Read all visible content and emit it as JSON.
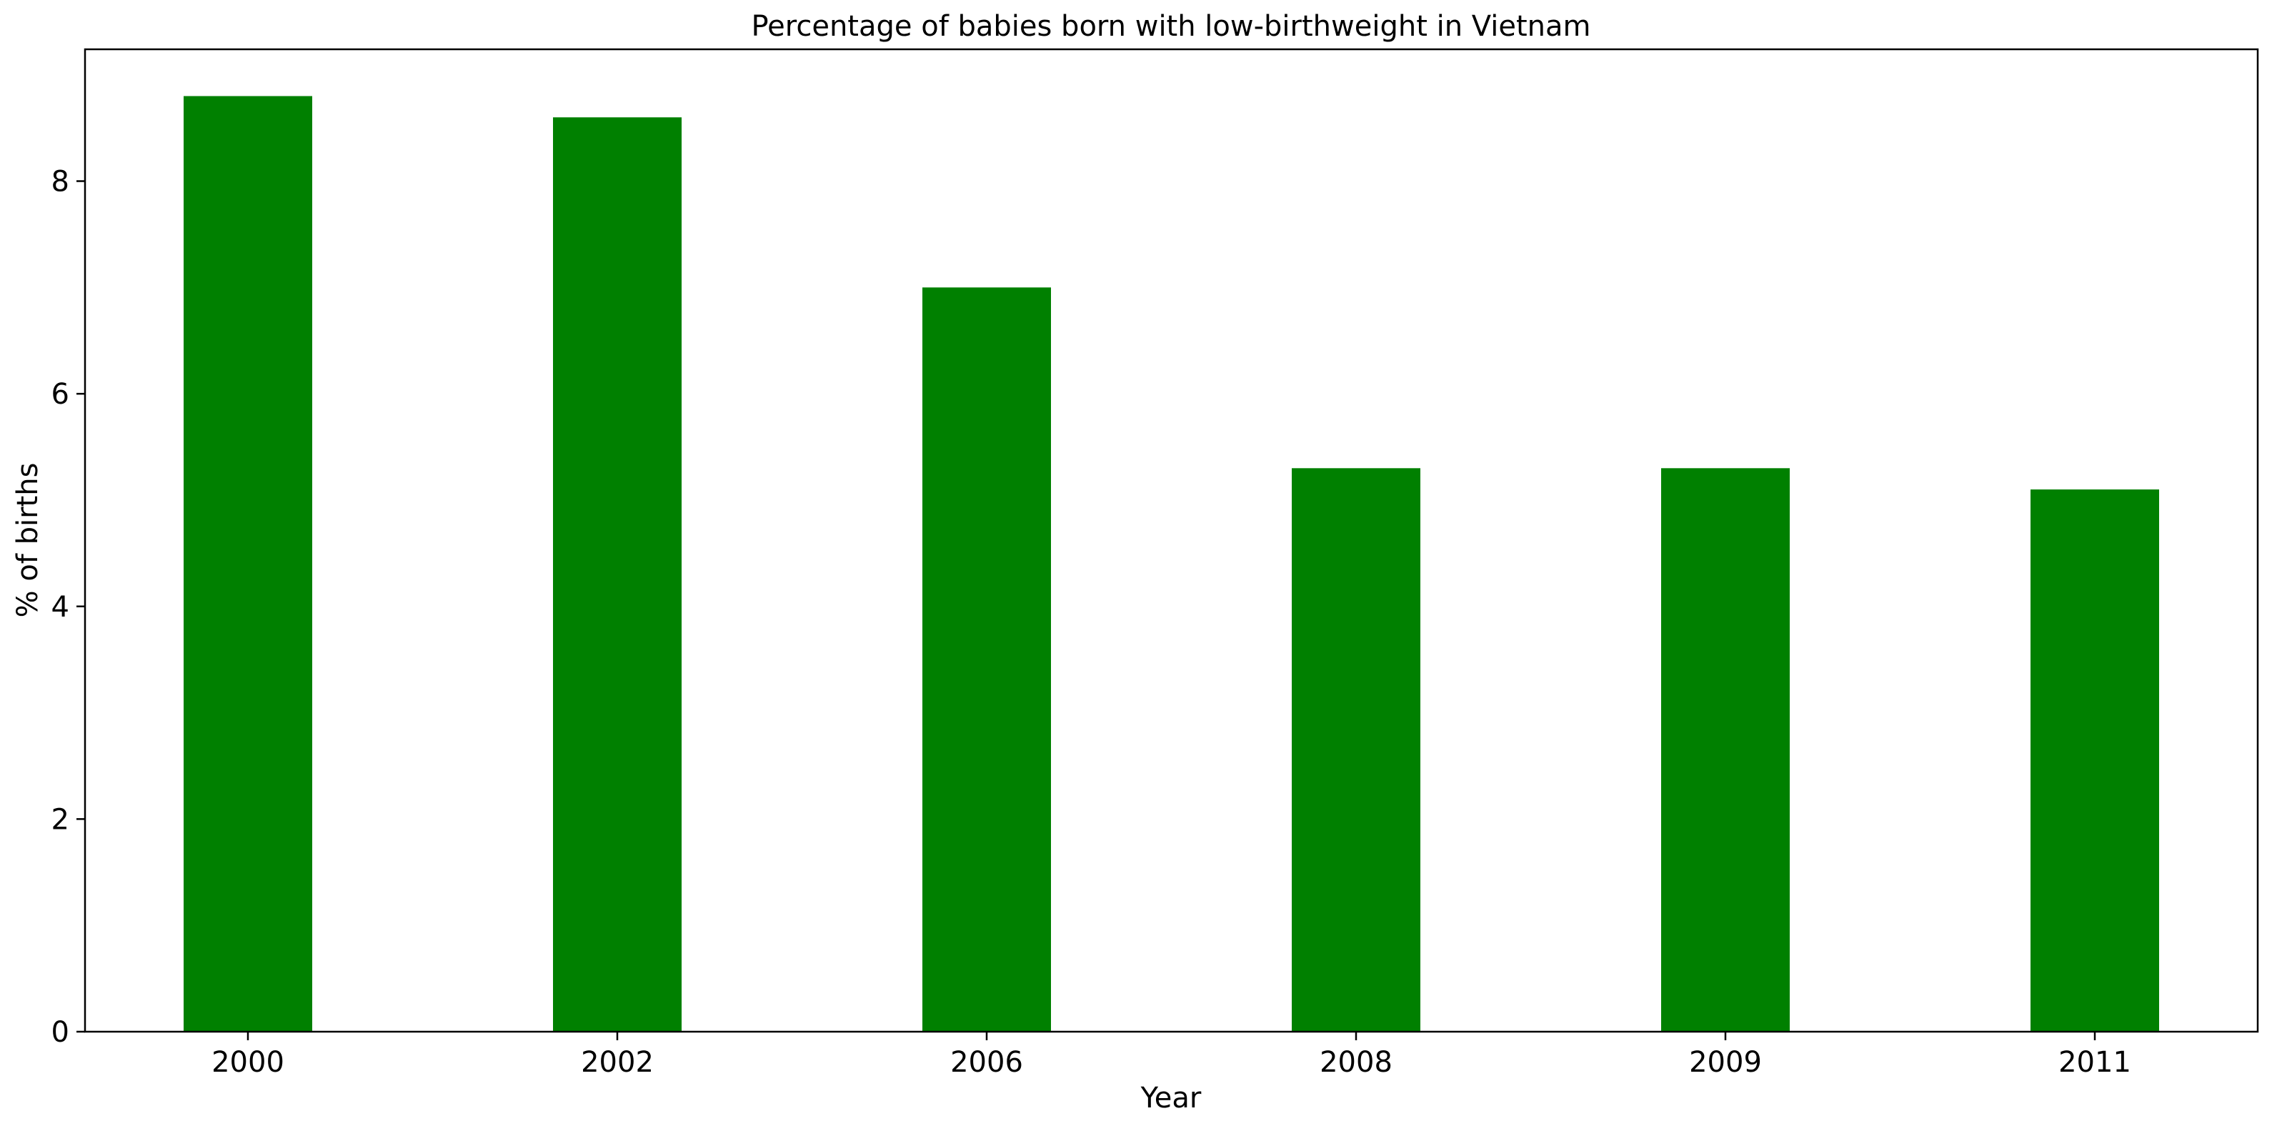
{
  "chart_data": {
    "type": "bar",
    "title": "Percentage of babies born with low-birthweight in Vietnam",
    "xlabel": "Year",
    "ylabel": "% of births",
    "categories": [
      "2000",
      "2002",
      "2006",
      "2008",
      "2009",
      "2011"
    ],
    "values": [
      8.8,
      8.6,
      7.0,
      5.3,
      5.3,
      5.1
    ],
    "ylim": [
      0,
      9.24
    ],
    "yticks": [
      0,
      2,
      4,
      6,
      8
    ],
    "grid": false,
    "legend": "none",
    "bar_color": "#008000"
  }
}
